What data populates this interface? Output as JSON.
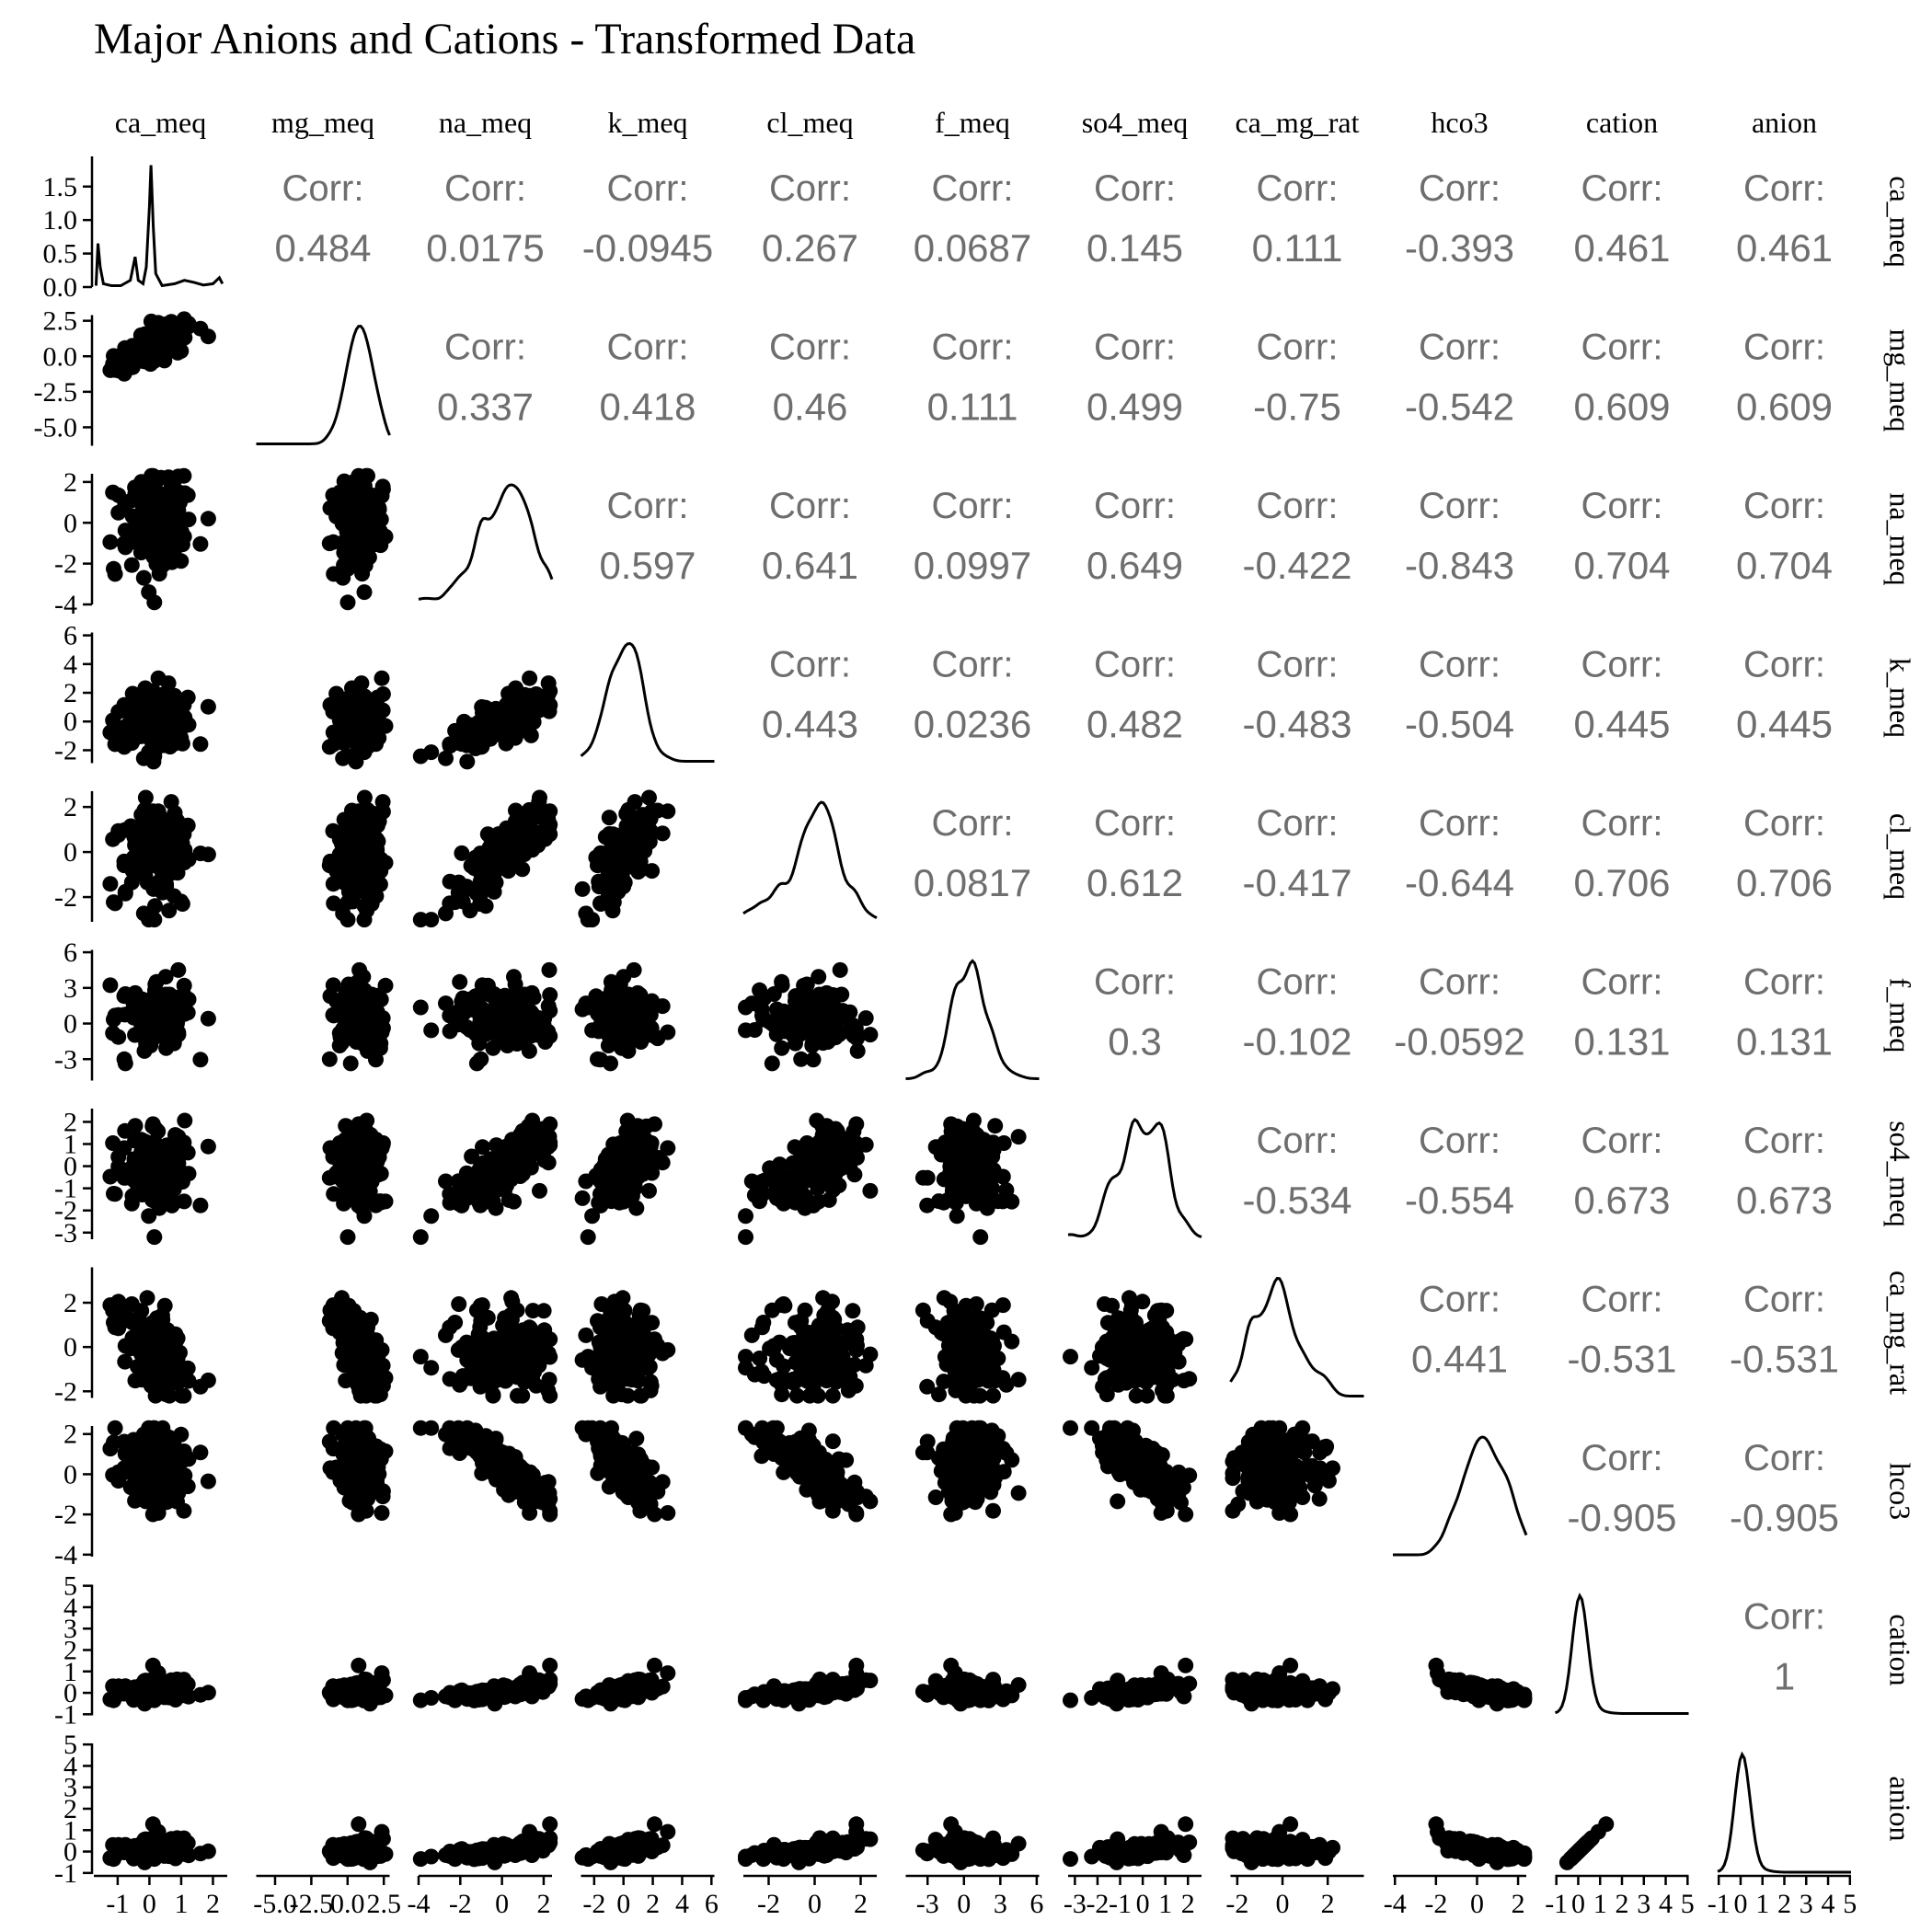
{
  "chart_data": {
    "type": "scatter",
    "title": "Major Anions and Cations - Transformed Data",
    "variables": [
      "ca_meq",
      "mg_meq",
      "na_meq",
      "k_meq",
      "cl_meq",
      "f_meq",
      "so4_meq",
      "ca_mg_rat",
      "hco3",
      "cation",
      "anion"
    ],
    "corr_label": "Corr:",
    "correlations": {
      "ca_meq|mg_meq": "0.484",
      "ca_meq|na_meq": "0.0175",
      "ca_meq|k_meq": "-0.0945",
      "ca_meq|cl_meq": "0.267",
      "ca_meq|f_meq": "0.0687",
      "ca_meq|so4_meq": "0.145",
      "ca_meq|ca_mg_rat": "0.111",
      "ca_meq|hco3": "-0.393",
      "ca_meq|cation": "0.461",
      "ca_meq|anion": "0.461",
      "mg_meq|na_meq": "0.337",
      "mg_meq|k_meq": "0.418",
      "mg_meq|cl_meq": "0.46",
      "mg_meq|f_meq": "0.111",
      "mg_meq|so4_meq": "0.499",
      "mg_meq|ca_mg_rat": "-0.75",
      "mg_meq|hco3": "-0.542",
      "mg_meq|cation": "0.609",
      "mg_meq|anion": "0.609",
      "na_meq|k_meq": "0.597",
      "na_meq|cl_meq": "0.641",
      "na_meq|f_meq": "0.0997",
      "na_meq|so4_meq": "0.649",
      "na_meq|ca_mg_rat": "-0.422",
      "na_meq|hco3": "-0.843",
      "na_meq|cation": "0.704",
      "na_meq|anion": "0.704",
      "k_meq|cl_meq": "0.443",
      "k_meq|f_meq": "0.0236",
      "k_meq|so4_meq": "0.482",
      "k_meq|ca_mg_rat": "-0.483",
      "k_meq|hco3": "-0.504",
      "k_meq|cation": "0.445",
      "k_meq|anion": "0.445",
      "cl_meq|f_meq": "0.0817",
      "cl_meq|so4_meq": "0.612",
      "cl_meq|ca_mg_rat": "-0.417",
      "cl_meq|hco3": "-0.644",
      "cl_meq|cation": "0.706",
      "cl_meq|anion": "0.706",
      "f_meq|so4_meq": "0.3",
      "f_meq|ca_mg_rat": "-0.102",
      "f_meq|hco3": "-0.0592",
      "f_meq|cation": "0.131",
      "f_meq|anion": "0.131",
      "so4_meq|ca_mg_rat": "-0.534",
      "so4_meq|hco3": "-0.554",
      "so4_meq|cation": "0.673",
      "so4_meq|anion": "0.673",
      "ca_mg_rat|hco3": "0.441",
      "ca_mg_rat|cation": "-0.531",
      "ca_mg_rat|anion": "-0.531",
      "hco3|cation": "-0.905",
      "hco3|anion": "-0.905",
      "cation|anion": "1"
    },
    "ranges": {
      "ca_meq": [
        -1.75,
        2.45
      ],
      "mg_meq": [
        -6.3,
        2.9
      ],
      "na_meq": [
        -4.0,
        2.4
      ],
      "k_meq": [
        -2.9,
        6.2
      ],
      "cl_meq": [
        -3.1,
        2.7
      ],
      "f_meq": [
        -4.8,
        6.2
      ],
      "so4_meq": [
        -3.3,
        2.6
      ],
      "ca_mg_rat": [
        -2.3,
        3.6
      ],
      "hco3": [
        -4.1,
        2.4
      ],
      "cation": [
        -1.05,
        5.05
      ],
      "anion": [
        -1.05,
        5.05
      ]
    },
    "x_ticks": {
      "ca_meq": [
        "-1",
        "0",
        "1",
        "2"
      ],
      "mg_meq": [
        "-5.0",
        "-2.5",
        "0.0",
        "2.5"
      ],
      "na_meq": [
        "-4",
        "-2",
        "0",
        "2"
      ],
      "k_meq": [
        "-2",
        "0",
        "2",
        "4",
        "6"
      ],
      "cl_meq": [
        "-2",
        "0",
        "2"
      ],
      "f_meq": [
        "-3",
        "0",
        "3",
        "6"
      ],
      "so4_meq": [
        "-3",
        "-2",
        "-1",
        "0",
        "1",
        "2"
      ],
      "ca_mg_rat": [
        "-2",
        "0",
        "2"
      ],
      "hco3": [
        "-4",
        "-2",
        "0",
        "2"
      ],
      "cation": [
        "-1",
        "0",
        "1",
        "2",
        "3",
        "4",
        "5"
      ],
      "anion": [
        "-1",
        "0",
        "1",
        "2",
        "3",
        "4",
        "5"
      ]
    },
    "y_ticks": {
      "ca_meq": [
        "0.0",
        "0.5",
        "1.0",
        "1.5"
      ],
      "mg_meq": [
        "-5.0",
        "-2.5",
        "0.0",
        "2.5"
      ],
      "na_meq": [
        "-4",
        "-2",
        "0",
        "2"
      ],
      "k_meq": [
        "-2",
        "0",
        "2",
        "4",
        "6"
      ],
      "cl_meq": [
        "-2",
        "0",
        "2"
      ],
      "f_meq": [
        "-3",
        "0",
        "3",
        "6"
      ],
      "so4_meq": [
        "-3",
        "-2",
        "-1",
        "0",
        "1",
        "2"
      ],
      "ca_mg_rat": [
        "-2",
        "0",
        "2"
      ],
      "hco3": [
        "-4",
        "-2",
        "0",
        "2"
      ],
      "cation": [
        "-1",
        "0",
        "1",
        "2",
        "3",
        "4",
        "5"
      ],
      "anion": [
        "-1",
        "0",
        "1",
        "2",
        "3",
        "4",
        "5"
      ]
    },
    "density_ylim": [
      0,
      1.95
    ],
    "density_curve": [
      [
        -1.68,
        0.02
      ],
      [
        -1.62,
        0.65
      ],
      [
        -1.55,
        0.3
      ],
      [
        -1.45,
        0.05
      ],
      [
        -1.2,
        0.02
      ],
      [
        -0.9,
        0.02
      ],
      [
        -0.6,
        0.1
      ],
      [
        -0.45,
        0.45
      ],
      [
        -0.35,
        0.1
      ],
      [
        -0.2,
        0.05
      ],
      [
        -0.1,
        0.3
      ],
      [
        0.0,
        1.2
      ],
      [
        0.05,
        1.82
      ],
      [
        0.12,
        0.9
      ],
      [
        0.2,
        0.2
      ],
      [
        0.4,
        0.02
      ],
      [
        0.8,
        0.05
      ],
      [
        1.1,
        0.1
      ],
      [
        1.4,
        0.07
      ],
      [
        1.7,
        0.03
      ],
      [
        2.0,
        0.05
      ],
      [
        2.2,
        0.14
      ],
      [
        2.3,
        0.05
      ]
    ],
    "grid": false,
    "legend": "none"
  }
}
